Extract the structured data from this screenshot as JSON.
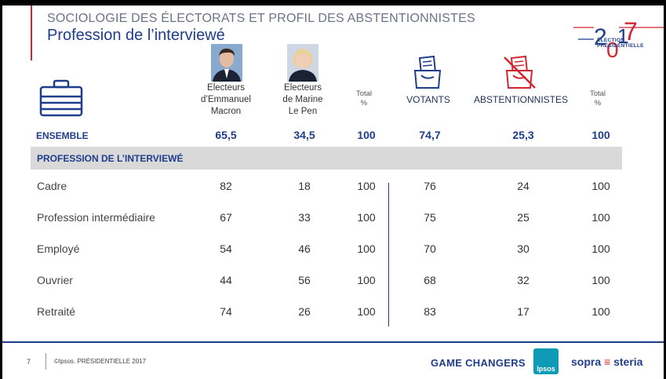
{
  "header": {
    "title": "SOCIOLOGIE DES ÉLECTORATS ET PROFIL DES ABSTENTIONNISTES",
    "subtitle": "Profession de l’interviewé",
    "logo_lines": [
      "ÉLECTION",
      "PRÉSIDENTIELLE"
    ]
  },
  "columns": {
    "macron": [
      "Electeurs",
      "d’Emmanuel",
      "Macron"
    ],
    "lepen": [
      "Electeurs",
      "de Marine",
      "Le Pen"
    ],
    "total1": [
      "Total",
      "%"
    ],
    "votants": "VOTANTS",
    "abst": "ABSTENTIONNISTES",
    "total2": [
      "Total",
      "%"
    ]
  },
  "ensemble": {
    "label": "ENSEMBLE",
    "values": [
      "65,5",
      "34,5",
      "100",
      "74,7",
      "25,3",
      "100"
    ]
  },
  "section_label": "PROFESSION DE L’INTERVIEWÉ",
  "rows": [
    {
      "label": "Cadre",
      "values": [
        "82",
        "18",
        "100",
        "76",
        "24",
        "100"
      ]
    },
    {
      "label": "Profession intermédiaire",
      "values": [
        "67",
        "33",
        "100",
        "75",
        "25",
        "100"
      ]
    },
    {
      "label": "Employé",
      "values": [
        "54",
        "46",
        "100",
        "70",
        "30",
        "100"
      ]
    },
    {
      "label": "Ouvrier",
      "values": [
        "44",
        "56",
        "100",
        "68",
        "32",
        "100"
      ]
    },
    {
      "label": "Retraité",
      "values": [
        "74",
        "26",
        "100",
        "83",
        "17",
        "100"
      ]
    }
  ],
  "footer": {
    "page": "7",
    "copyright": "©Ipsos. PRÉSIDENTIELLE 2017",
    "game_changers": "GAME CHANGERS",
    "ipsos": "Ipsos",
    "sopra_a": "sopra",
    "sopra_b": "steria"
  },
  "colors": {
    "navy": "#1f3d8a",
    "red": "#d22630",
    "band": "#d9d9d9"
  },
  "icons": [
    "briefcase-icon",
    "ballot-box-icon",
    "crossed-ballot-box-icon",
    "macron-photo",
    "lepen-photo"
  ]
}
